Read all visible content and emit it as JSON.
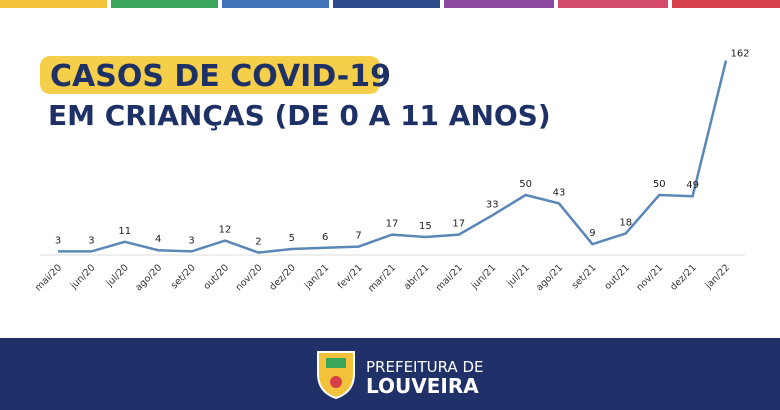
{
  "chart_data": {
    "type": "line",
    "title": "CASOS DE COVID-19",
    "subtitle": "EM CRIANÇAS (DE 0 A 11 ANOS)",
    "categories": [
      "mai/20",
      "jun/20",
      "jul/20",
      "ago/20",
      "set/20",
      "out/20",
      "nov/20",
      "dez/20",
      "jan/21",
      "fev/21",
      "mar/21",
      "abr/21",
      "mai/21",
      "jun/21",
      "jul/21",
      "ago/21",
      "set/21",
      "out/21",
      "nov/21",
      "dez/21",
      "jan/22"
    ],
    "values": [
      3,
      3,
      11,
      4,
      3,
      12,
      2,
      5,
      6,
      7,
      17,
      15,
      17,
      33,
      50,
      43,
      9,
      18,
      50,
      49,
      162
    ],
    "color": "#5b87b8"
  },
  "footer": {
    "line1": "PREFEITURA DE",
    "line2": "LOUVEIRA"
  }
}
